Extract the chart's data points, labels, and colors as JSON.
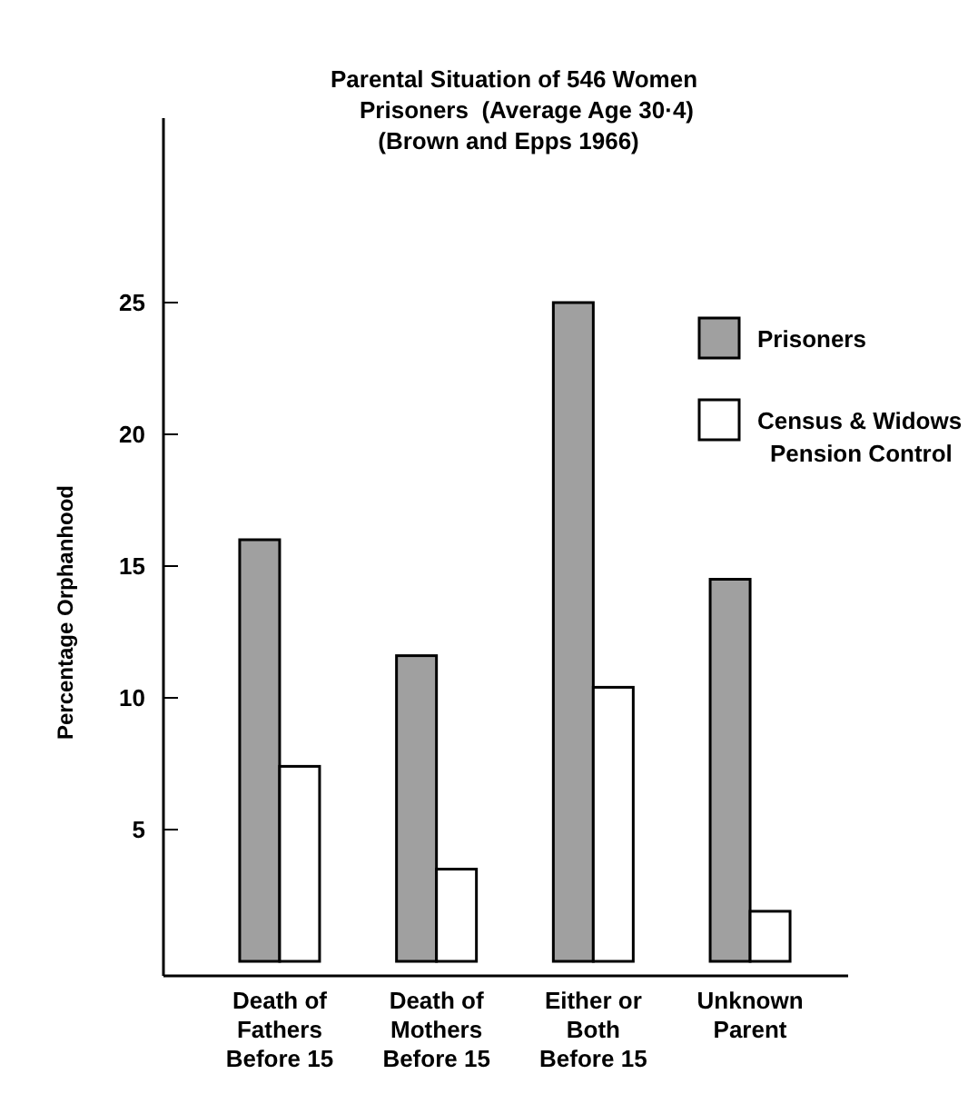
{
  "chart_data": {
    "type": "bar",
    "title": "Parental Situation of 546 Women\nPrisoners  (Average Age 30·4)\n(Brown and Epps 1966)",
    "ylabel": "Percentage Orphanhood",
    "categories": [
      "Death of\nFathers\nBefore 15",
      "Death of\nMothers\nBefore 15",
      "Either or\nBoth\nBefore 15",
      "Unknown\nParent"
    ],
    "series": [
      {
        "name": "Prisoners",
        "color": "#a0a0a0",
        "values": [
          16,
          11.6,
          25,
          14.5
        ]
      },
      {
        "name": "Census & Widows\nPension Control",
        "color": "#ffffff",
        "values": [
          7.4,
          3.5,
          10.4,
          1.9
        ]
      }
    ],
    "ylim": [
      0,
      32
    ],
    "yticks": [
      5,
      10,
      15,
      20,
      25
    ],
    "grid": false,
    "legend": "top right"
  }
}
